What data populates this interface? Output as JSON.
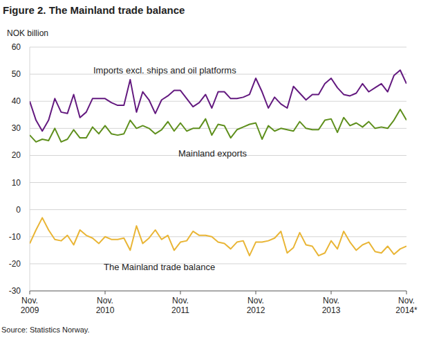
{
  "chart_data": {
    "type": "line",
    "title": "Figure 2. The Mainland trade balance",
    "y_label": "NOK billion",
    "source": "Source: Statistics Norway.",
    "categories": [
      "Nov. 2009",
      null,
      null,
      null,
      null,
      null,
      null,
      null,
      null,
      null,
      null,
      null,
      "Nov. 2010",
      null,
      null,
      null,
      null,
      null,
      null,
      null,
      null,
      null,
      null,
      null,
      "Nov. 2011",
      null,
      null,
      null,
      null,
      null,
      null,
      null,
      null,
      null,
      null,
      null,
      "Nov. 2012",
      null,
      null,
      null,
      null,
      null,
      null,
      null,
      null,
      null,
      null,
      null,
      "Nov. 2013",
      null,
      null,
      null,
      null,
      null,
      null,
      null,
      null,
      null,
      null,
      null,
      "Nov. 2014*"
    ],
    "series": [
      {
        "name": "Imports excl. ships and oil platforms",
        "color": "#63197f",
        "values": [
          40,
          33,
          29,
          33,
          41,
          36,
          35.5,
          42.5,
          34,
          36,
          41,
          41,
          41,
          39.5,
          38.5,
          38.5,
          48,
          36,
          43.5,
          40.5,
          35.5,
          40.5,
          42,
          44,
          44,
          41,
          38,
          39.5,
          42.5,
          37.5,
          43.5,
          43.5,
          41,
          41,
          41.5,
          42.5,
          48.5,
          43.5,
          37.5,
          41.5,
          39,
          37.5,
          45.5,
          43,
          40.5,
          42.5,
          42.5,
          46.5,
          48.5,
          45,
          42.5,
          42,
          43,
          46.5,
          43.5,
          45,
          46.5,
          43.5,
          49.5,
          51.5,
          46.5
        ]
      },
      {
        "name": "Mainland exports",
        "color": "#5e8f1c",
        "values": [
          27.5,
          25,
          26,
          25.5,
          30,
          25,
          26,
          29.5,
          26.5,
          26.5,
          30.5,
          28,
          31,
          28,
          27.5,
          28,
          33,
          30,
          31,
          30,
          28,
          29.5,
          32.5,
          29,
          32,
          29,
          30,
          30,
          33.5,
          27.5,
          31.5,
          31,
          26.5,
          29.5,
          30.5,
          31.5,
          32,
          26,
          31,
          29,
          30,
          29.5,
          29,
          32.5,
          30,
          29.5,
          29.5,
          33,
          33.5,
          28.5,
          34,
          31,
          32,
          30.5,
          32.5,
          30,
          30.5,
          30,
          33,
          37,
          33
        ]
      },
      {
        "name": "The Mainland trade balance",
        "color": "#e9b535",
        "values": [
          -12.5,
          -7.5,
          -3,
          -7.5,
          -11,
          -11.5,
          -9.5,
          -13,
          -7.5,
          -9.5,
          -10.5,
          -12.5,
          -10,
          -11,
          -11,
          -10.5,
          -15,
          -6,
          -12.5,
          -10.5,
          -7.5,
          -11,
          -9.5,
          -15,
          -12,
          -11.5,
          -8,
          -9.5,
          -9.5,
          -10,
          -12,
          -12.5,
          -14.5,
          -12,
          -11.5,
          -17,
          -12,
          -12,
          -11.5,
          -10.5,
          -8,
          -16,
          -14,
          -8.5,
          -13,
          -13.5,
          -17,
          -16,
          -11.5,
          -14.5,
          -8,
          -12,
          -15,
          -13,
          -12,
          -15.5,
          -16,
          -13.5,
          -16.5,
          -14.5,
          -13.5
        ]
      }
    ],
    "ylim": [
      -30,
      60
    ],
    "yticks": [
      -30,
      -20,
      -10,
      0,
      10,
      20,
      30,
      40,
      50,
      60
    ],
    "grid": true
  }
}
